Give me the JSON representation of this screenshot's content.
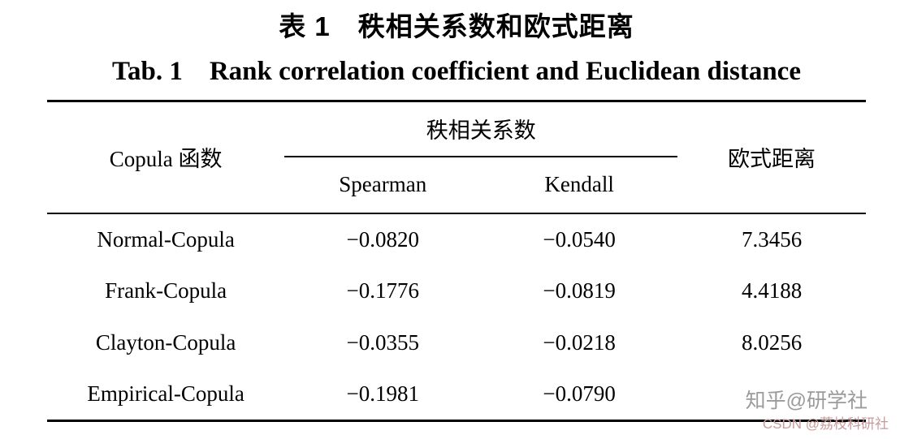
{
  "titles": {
    "zh": "表 1　秩相关系数和欧式距离",
    "en": "Tab. 1    Rank correlation coefficient and Euclidean distance"
  },
  "table": {
    "col1_header": "Copula 函数",
    "group_header": "秩相关系数",
    "sub_headers": {
      "spearman": "Spearman",
      "kendall": "Kendall"
    },
    "col4_header": "欧式距离",
    "rows": [
      {
        "name": "Normal-Copula",
        "spearman": "−0.0820",
        "kendall": "−0.0540",
        "euclidean": "7.3456"
      },
      {
        "name": "Frank-Copula",
        "spearman": "−0.1776",
        "kendall": "−0.0819",
        "euclidean": "4.4188"
      },
      {
        "name": "Clayton-Copula",
        "spearman": "−0.0355",
        "kendall": "−0.0218",
        "euclidean": "8.0256"
      },
      {
        "name": "Empirical-Copula",
        "spearman": "−0.1981",
        "kendall": "−0.0790",
        "euclidean": ""
      }
    ]
  },
  "watermarks": {
    "zhihu": "知乎@研学社",
    "csdn": "CSDN @荔枝科研社"
  },
  "colors": {
    "text": "#000000",
    "rule": "#000000",
    "watermark_zhihu": "#9b9b9b",
    "watermark_csdn": "#c89b9b"
  }
}
